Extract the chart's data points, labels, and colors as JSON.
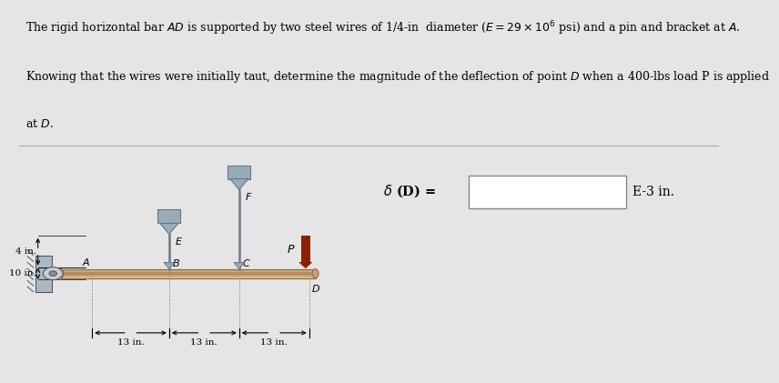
{
  "bg_color": "#e5e5e5",
  "diagram_bg": "#ffffff",
  "bar_color_mid": "#b8906a",
  "bar_color_light": "#d4b896",
  "support_color": "#9aabb8",
  "support_dark": "#667788",
  "wall_color": "#aab8c2",
  "load_color": "#8B2000",
  "line1": "The rigid horizontal bar $AD$ is supported by two steel wires of 1/4-in  diameter ($E = 29 \\times 10^6$ psi) and a pin and bracket at $A$.",
  "line2": "Knowing that the wires were initially taut, determine the magnitude of the deflection of point $D$ when a 400-lbs load P is applied",
  "line3": "at $D$.",
  "delta_label": "$\\delta$ (D) =",
  "units_label": "E-3 in.",
  "label_fontsize": 8,
  "text_fontsize": 9
}
